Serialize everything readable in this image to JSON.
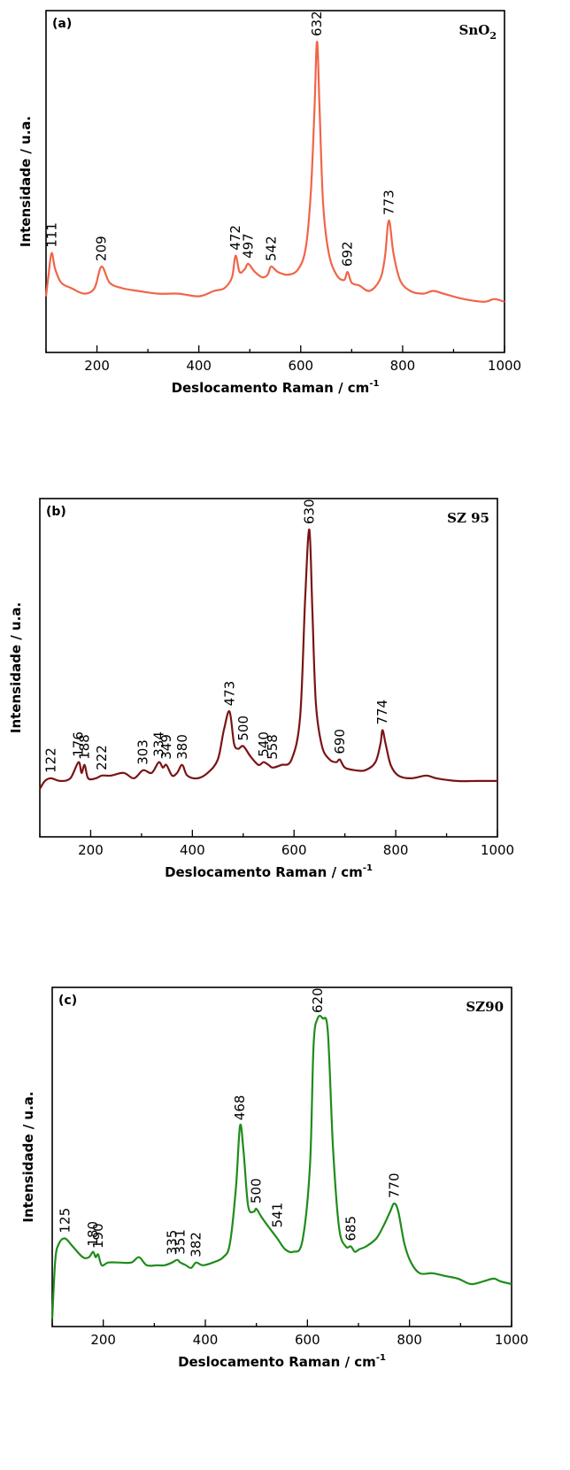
{
  "chart_data": [
    {
      "type": "line",
      "panel": "(a)",
      "sample": "SnO",
      "sample_sub": "2",
      "xlabel": "Deslocamento Raman / cm",
      "xlabel_sup": "-1",
      "ylabel": "Intensidade / u.a.",
      "xlim": [
        100,
        1000
      ],
      "ylim": [
        0,
        100
      ],
      "xticks": [
        "200",
        "400",
        "600",
        "800",
        "1000"
      ],
      "color": "#f06548",
      "x": [
        100,
        105,
        111,
        118,
        130,
        150,
        175,
        195,
        209,
        225,
        250,
        280,
        320,
        360,
        400,
        430,
        450,
        465,
        472,
        480,
        490,
        497,
        510,
        525,
        535,
        542,
        555,
        575,
        595,
        610,
        620,
        627,
        632,
        637,
        644,
        655,
        670,
        685,
        692,
        700,
        715,
        735,
        755,
        765,
        773,
        782,
        795,
        815,
        840,
        860,
        880,
        920,
        960,
        980,
        1000
      ],
      "y": [
        6,
        14,
        22,
        16,
        11,
        9,
        7,
        9,
        17,
        11,
        9,
        8,
        7,
        7,
        6,
        8,
        9,
        13,
        21,
        15,
        16,
        18,
        15,
        13,
        14,
        17,
        15,
        14,
        16,
        24,
        45,
        75,
        100,
        75,
        40,
        22,
        14,
        12,
        15,
        11,
        10,
        8,
        12,
        20,
        34,
        22,
        12,
        8,
        7,
        8,
        7,
        5,
        4,
        5,
        4
      ],
      "peaks": [
        111,
        209,
        472,
        497,
        542,
        632,
        692,
        773
      ]
    },
    {
      "type": "line",
      "panel": "(b)",
      "sample": "SZ 95",
      "xlabel": "Deslocamento Raman / cm",
      "xlabel_sup": "-1",
      "ylabel": "Intensidade / u.a.",
      "xlim": [
        100,
        1000
      ],
      "ylim": [
        0,
        100
      ],
      "xticks": [
        "200",
        "400",
        "600",
        "800",
        "1000"
      ],
      "color": "#7a1414",
      "x": [
        100,
        110,
        122,
        140,
        160,
        176,
        182,
        188,
        195,
        210,
        222,
        240,
        265,
        285,
        303,
        320,
        334,
        342,
        349,
        360,
        370,
        380,
        390,
        410,
        430,
        450,
        462,
        473,
        482,
        490,
        500,
        515,
        530,
        540,
        550,
        558,
        575,
        595,
        612,
        622,
        630,
        636,
        643,
        655,
        670,
        683,
        690,
        700,
        720,
        740,
        760,
        770,
        774,
        780,
        790,
        805,
        830,
        860,
        880,
        920,
        960,
        1000
      ],
      "y": [
        3,
        6,
        7,
        6,
        7,
        13,
        9,
        12,
        7,
        7,
        8,
        8,
        9,
        7,
        10,
        9,
        13,
        11,
        12,
        8,
        9,
        12,
        8,
        7,
        9,
        14,
        25,
        32,
        20,
        18,
        19,
        15,
        12,
        13,
        12,
        11,
        12,
        14,
        30,
        75,
        100,
        70,
        35,
        19,
        14,
        13,
        14,
        11,
        10,
        10,
        13,
        20,
        25,
        20,
        12,
        8,
        7,
        8,
        7,
        6,
        6,
        6
      ],
      "peaks": [
        122,
        176,
        188,
        222,
        303,
        334,
        349,
        380,
        473,
        500,
        540,
        558,
        630,
        690,
        774
      ]
    },
    {
      "type": "line",
      "panel": "(c)",
      "sample": "SZ90",
      "xlabel": "Deslocamento Raman / cm",
      "xlabel_sup": "-1",
      "ylabel": "Intensidade / u.a.",
      "xlim": [
        100,
        1000
      ],
      "ylim": [
        0,
        100
      ],
      "xticks": [
        "200",
        "400",
        "600",
        "800",
        "1000"
      ],
      "color": "#1f8c1a",
      "x": [
        100,
        106,
        113,
        125,
        140,
        160,
        172,
        180,
        185,
        190,
        197,
        210,
        230,
        255,
        270,
        285,
        305,
        320,
        335,
        345,
        351,
        362,
        372,
        382,
        395,
        415,
        435,
        448,
        460,
        468,
        475,
        484,
        495,
        500,
        510,
        525,
        541,
        556,
        572,
        590,
        605,
        612,
        620,
        630,
        640,
        650,
        662,
        675,
        685,
        693,
        702,
        715,
        735,
        750,
        762,
        770,
        778,
        790,
        803,
        820,
        845,
        870,
        895,
        920,
        945,
        965,
        978,
        1000
      ],
      "y": [
        -12,
        10,
        16,
        18,
        15,
        11,
        11,
        13,
        11,
        12,
        8,
        9,
        9,
        9,
        11,
        8,
        8,
        8,
        9,
        10,
        9,
        8,
        7,
        9,
        8,
        9,
        11,
        16,
        37,
        60,
        50,
        30,
        28,
        29,
        26,
        22,
        18,
        14,
        13,
        17,
        45,
        90,
        100,
        100,
        95,
        52,
        22,
        15,
        15,
        13,
        14,
        15,
        18,
        23,
        28,
        31,
        28,
        16,
        9,
        5,
        5,
        4,
        3,
        1,
        2,
        3,
        2,
        1
      ],
      "peaks": [
        125,
        180,
        190,
        335,
        351,
        382,
        468,
        500,
        541,
        620,
        685,
        770
      ]
    }
  ]
}
